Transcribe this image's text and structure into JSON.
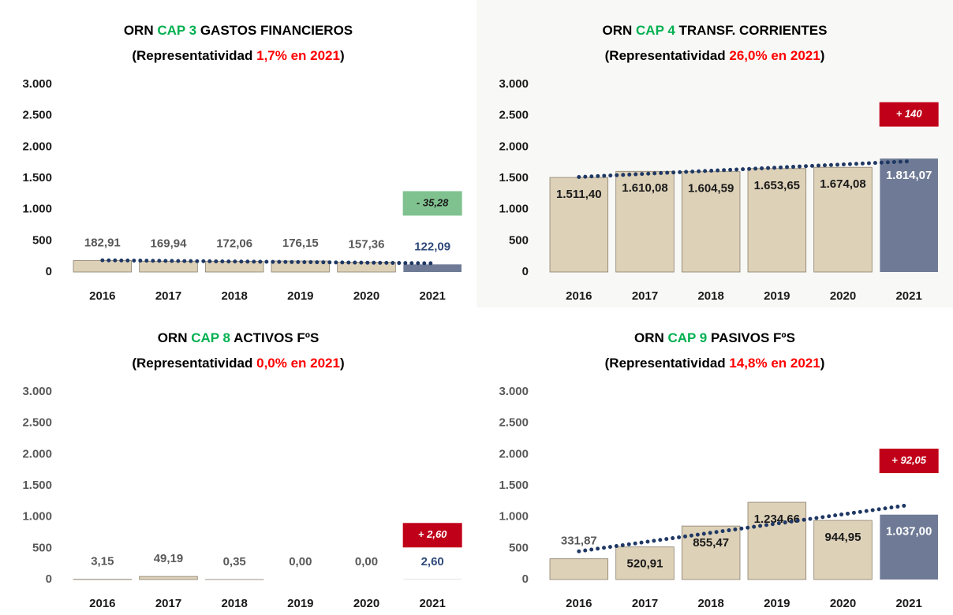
{
  "chart_data": [
    {
      "type": "bar",
      "title": [
        {
          "text": "ORN ",
          "color": "#000000"
        },
        {
          "text": "CAP 3 ",
          "color": "#00b050"
        },
        {
          "text": "GASTOS FINANCIEROS",
          "color": "#000000"
        }
      ],
      "subtitle": [
        {
          "text": "(Representatividad ",
          "color": "#000000"
        },
        {
          "text": "1,7% en 2021",
          "color": "#ff0000"
        },
        {
          "text": ")",
          "color": "#000000"
        }
      ],
      "categories": [
        "2016",
        "2017",
        "2018",
        "2019",
        "2020",
        "2021"
      ],
      "values": [
        182.91,
        169.94,
        172.06,
        176.15,
        157.36,
        122.09
      ],
      "value_labels": [
        "182,91",
        "169,94",
        "172,06",
        "176,15",
        "157,36",
        "122,09"
      ],
      "colors": [
        "#ddd1b8",
        "#ddd1b8",
        "#ddd1b8",
        "#ddd1b8",
        "#ddd1b8",
        "#6f7b96"
      ],
      "annotation": {
        "text": "- 35,28",
        "color": "#7fc28f",
        "text_color": "#1a1a1a"
      },
      "ylim": [
        0,
        3000
      ],
      "yticks": [
        0,
        500,
        {
          "value": 1000,
          "label": "1.000"
        },
        {
          "value": 1500,
          "label": "1.500"
        },
        {
          "value": 2000,
          "label": "2.000"
        },
        {
          "value": 2500,
          "label": "2.500"
        },
        {
          "value": 3000,
          "label": "3.000"
        }
      ]
    },
    {
      "type": "bar",
      "title": [
        {
          "text": "ORN ",
          "color": "#000000"
        },
        {
          "text": "CAP 4 ",
          "color": "#00b050"
        },
        {
          "text": "TRANSF. CORRIENTES",
          "color": "#000000"
        }
      ],
      "subtitle": [
        {
          "text": "(Representatividad ",
          "color": "#000000"
        },
        {
          "text": "26,0% en 2021",
          "color": "#ff0000"
        },
        {
          "text": ")",
          "color": "#000000"
        }
      ],
      "categories": [
        "2016",
        "2017",
        "2018",
        "2019",
        "2020",
        "2021"
      ],
      "values": [
        1511.4,
        1610.08,
        1604.59,
        1653.65,
        1674.08,
        1814.07
      ],
      "value_labels": [
        "1.511,40",
        "1.610,08",
        "1.604,59",
        "1.653,65",
        "1.674,08",
        "1.814,07"
      ],
      "colors": [
        "#ddd1b8",
        "#ddd1b8",
        "#ddd1b8",
        "#ddd1b8",
        "#ddd1b8",
        "#6f7b96"
      ],
      "annotation": {
        "text": "+ 140",
        "color": "#c00018",
        "text_color": "#ffffff"
      },
      "ylim": [
        0,
        3000
      ],
      "yticks": [
        0,
        500,
        {
          "value": 1000,
          "label": "1.000"
        },
        {
          "value": 1500,
          "label": "1.500"
        },
        {
          "value": 2000,
          "label": "2.000"
        },
        {
          "value": 2500,
          "label": "2.500"
        },
        {
          "value": 3000,
          "label": "3.000"
        }
      ]
    },
    {
      "type": "bar",
      "title": [
        {
          "text": "ORN ",
          "color": "#000000"
        },
        {
          "text": "CAP 8 ",
          "color": "#00b050"
        },
        {
          "text": "ACTIVOS FºS",
          "color": "#000000"
        }
      ],
      "subtitle": [
        {
          "text": "(Representatividad ",
          "color": "#000000"
        },
        {
          "text": "0,0% en 2021",
          "color": "#ff0000"
        },
        {
          "text": ")",
          "color": "#000000"
        }
      ],
      "categories": [
        "2016",
        "2017",
        "2018",
        "2019",
        "2020",
        "2021"
      ],
      "values": [
        3.15,
        49.19,
        0.35,
        0.0,
        0.0,
        2.6
      ],
      "value_labels": [
        "3,15",
        "49,19",
        "0,35",
        "0,00",
        "0,00",
        "2,60"
      ],
      "colors": [
        "#ddd1b8",
        "#ddd1b8",
        "#ddd1b8",
        "#ddd1b8",
        "#ddd1b8",
        "#6f7b96"
      ],
      "annotation": {
        "text": "+ 2,60",
        "color": "#c00018",
        "text_color": "#ffffff"
      },
      "ylim": [
        0,
        3000
      ],
      "yticks": [
        0,
        500,
        {
          "value": 1000,
          "label": "1.000"
        },
        {
          "value": 1500,
          "label": "1.500"
        },
        {
          "value": 2000,
          "label": "2.000"
        },
        {
          "value": 2500,
          "label": "2.500"
        },
        {
          "value": 3000,
          "label": "3.000"
        }
      ]
    },
    {
      "type": "bar",
      "title": [
        {
          "text": "ORN ",
          "color": "#000000"
        },
        {
          "text": "CAP 9 ",
          "color": "#00b050"
        },
        {
          "text": "PASIVOS FºS",
          "color": "#000000"
        }
      ],
      "subtitle": [
        {
          "text": "(Representatividad ",
          "color": "#000000"
        },
        {
          "text": "14,8% en 2021",
          "color": "#ff0000"
        },
        {
          "text": ")",
          "color": "#000000"
        }
      ],
      "categories": [
        "2016",
        "2017",
        "2018",
        "2019",
        "2020",
        "2021"
      ],
      "values": [
        331.87,
        520.91,
        855.47,
        1234.66,
        944.95,
        1037.0
      ],
      "value_labels": [
        "331,87",
        "520,91",
        "855,47",
        "1.234,66",
        "944,95",
        "1.037,00"
      ],
      "colors": [
        "#ddd1b8",
        "#ddd1b8",
        "#ddd1b8",
        "#ddd1b8",
        "#ddd1b8",
        "#6f7b96"
      ],
      "annotation": {
        "text": "+ 92,05",
        "color": "#c00018",
        "text_color": "#ffffff"
      },
      "ylim": [
        0,
        3000
      ],
      "yticks": [
        0,
        500,
        {
          "value": 1000,
          "label": "1.000"
        },
        {
          "value": 1500,
          "label": "1.500"
        },
        {
          "value": 2000,
          "label": "2.000"
        },
        {
          "value": 2500,
          "label": "2.500"
        },
        {
          "value": 3000,
          "label": "3.000"
        }
      ]
    }
  ]
}
